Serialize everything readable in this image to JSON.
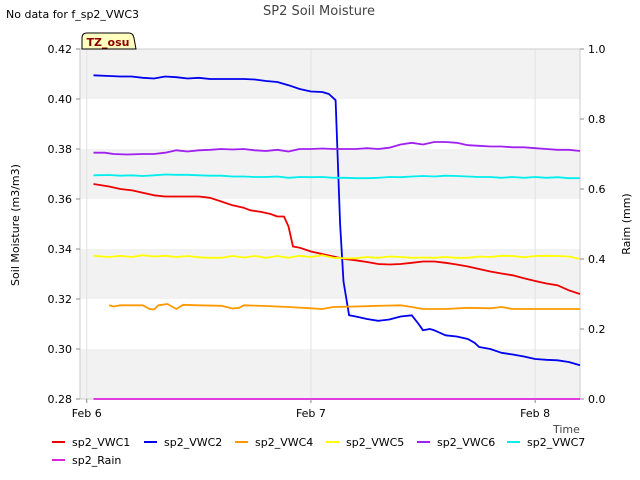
{
  "chart_data": {
    "type": "line",
    "title": "SP2 Soil Moisture",
    "no_data_note": "No data for f_sp2_VWC3",
    "badge": "TZ_osu",
    "xlabel": "Time",
    "ylabel": "Soil Moisture (m3/m3)",
    "y2label": "Raim (mm)",
    "ylim": [
      0.28,
      0.42
    ],
    "y2lim": [
      0.0,
      1.0
    ],
    "xlim_days": [
      -0.03,
      2.2
    ],
    "x_ticks": [
      {
        "pos": 0,
        "label": "Feb 6"
      },
      {
        "pos": 1,
        "label": "Feb 7"
      },
      {
        "pos": 2,
        "label": "Feb 8"
      }
    ],
    "y_ticks": [
      "0.28",
      "0.30",
      "0.32",
      "0.34",
      "0.36",
      "0.38",
      "0.40",
      "0.42"
    ],
    "y2_ticks": [
      "0.0",
      "0.2",
      "0.4",
      "0.6",
      "0.8",
      "1.0"
    ],
    "grid_bands": "alternating grey horizontal bands",
    "legend_position": "bottom",
    "series": [
      {
        "name": "sp2_VWC1",
        "color": "#ee0000",
        "axis": "left",
        "points": [
          [
            0.03,
            0.366
          ],
          [
            0.1,
            0.365
          ],
          [
            0.15,
            0.364
          ],
          [
            0.2,
            0.3635
          ],
          [
            0.25,
            0.3625
          ],
          [
            0.3,
            0.3615
          ],
          [
            0.35,
            0.361
          ],
          [
            0.4,
            0.361
          ],
          [
            0.45,
            0.361
          ],
          [
            0.5,
            0.361
          ],
          [
            0.55,
            0.3605
          ],
          [
            0.6,
            0.359
          ],
          [
            0.65,
            0.3575
          ],
          [
            0.7,
            0.3565
          ],
          [
            0.73,
            0.3555
          ],
          [
            0.78,
            0.3548
          ],
          [
            0.82,
            0.354
          ],
          [
            0.85,
            0.353
          ],
          [
            0.88,
            0.353
          ],
          [
            0.9,
            0.349
          ],
          [
            0.92,
            0.341
          ],
          [
            0.95,
            0.3405
          ],
          [
            1.0,
            0.339
          ],
          [
            1.05,
            0.338
          ],
          [
            1.1,
            0.337
          ],
          [
            1.15,
            0.336
          ],
          [
            1.2,
            0.3355
          ],
          [
            1.25,
            0.3348
          ],
          [
            1.3,
            0.334
          ],
          [
            1.35,
            0.3338
          ],
          [
            1.4,
            0.334
          ],
          [
            1.45,
            0.3345
          ],
          [
            1.5,
            0.335
          ],
          [
            1.55,
            0.335
          ],
          [
            1.6,
            0.3345
          ],
          [
            1.65,
            0.3338
          ],
          [
            1.7,
            0.333
          ],
          [
            1.75,
            0.332
          ],
          [
            1.8,
            0.331
          ],
          [
            1.85,
            0.3302
          ],
          [
            1.9,
            0.3295
          ],
          [
            1.95,
            0.3283
          ],
          [
            2.0,
            0.3272
          ],
          [
            2.05,
            0.3262
          ],
          [
            2.1,
            0.3255
          ],
          [
            2.15,
            0.3235
          ],
          [
            2.2,
            0.322
          ]
        ]
      },
      {
        "name": "sp2_VWC2",
        "color": "#0000ee",
        "axis": "left",
        "points": [
          [
            0.03,
            0.4095
          ],
          [
            0.1,
            0.4092
          ],
          [
            0.15,
            0.409
          ],
          [
            0.2,
            0.409
          ],
          [
            0.25,
            0.4085
          ],
          [
            0.3,
            0.4082
          ],
          [
            0.35,
            0.409
          ],
          [
            0.4,
            0.4087
          ],
          [
            0.45,
            0.4082
          ],
          [
            0.5,
            0.4085
          ],
          [
            0.55,
            0.408
          ],
          [
            0.6,
            0.408
          ],
          [
            0.65,
            0.408
          ],
          [
            0.7,
            0.408
          ],
          [
            0.75,
            0.4078
          ],
          [
            0.8,
            0.4072
          ],
          [
            0.85,
            0.4068
          ],
          [
            0.9,
            0.4055
          ],
          [
            0.95,
            0.404
          ],
          [
            1.0,
            0.403
          ],
          [
            1.05,
            0.4028
          ],
          [
            1.08,
            0.402
          ],
          [
            1.11,
            0.3995
          ],
          [
            1.13,
            0.35
          ],
          [
            1.145,
            0.327
          ],
          [
            1.17,
            0.3135
          ],
          [
            1.2,
            0.313
          ],
          [
            1.25,
            0.312
          ],
          [
            1.3,
            0.3113
          ],
          [
            1.35,
            0.3118
          ],
          [
            1.4,
            0.313
          ],
          [
            1.45,
            0.3135
          ],
          [
            1.48,
            0.31
          ],
          [
            1.5,
            0.3075
          ],
          [
            1.53,
            0.308
          ],
          [
            1.55,
            0.3075
          ],
          [
            1.6,
            0.3055
          ],
          [
            1.65,
            0.305
          ],
          [
            1.7,
            0.304
          ],
          [
            1.73,
            0.3025
          ],
          [
            1.75,
            0.3008
          ],
          [
            1.8,
            0.3
          ],
          [
            1.85,
            0.2985
          ],
          [
            1.9,
            0.2978
          ],
          [
            1.95,
            0.297
          ],
          [
            2.0,
            0.296
          ],
          [
            2.05,
            0.2957
          ],
          [
            2.1,
            0.2955
          ],
          [
            2.15,
            0.2948
          ],
          [
            2.2,
            0.2935
          ]
        ]
      },
      {
        "name": "sp2_VWC4",
        "color": "#ff9900",
        "axis": "left",
        "points": [
          [
            0.1,
            0.3175
          ],
          [
            0.12,
            0.317
          ],
          [
            0.15,
            0.3175
          ],
          [
            0.2,
            0.3175
          ],
          [
            0.25,
            0.3175
          ],
          [
            0.28,
            0.316
          ],
          [
            0.3,
            0.3158
          ],
          [
            0.32,
            0.3175
          ],
          [
            0.36,
            0.318
          ],
          [
            0.4,
            0.316
          ],
          [
            0.43,
            0.3177
          ],
          [
            0.5,
            0.3175
          ],
          [
            0.6,
            0.3173
          ],
          [
            0.65,
            0.3162
          ],
          [
            0.68,
            0.3165
          ],
          [
            0.7,
            0.3175
          ],
          [
            0.8,
            0.3172
          ],
          [
            0.9,
            0.3168
          ],
          [
            1.0,
            0.3163
          ],
          [
            1.05,
            0.316
          ],
          [
            1.1,
            0.3168
          ],
          [
            1.2,
            0.317
          ],
          [
            1.3,
            0.3173
          ],
          [
            1.4,
            0.3175
          ],
          [
            1.45,
            0.3168
          ],
          [
            1.5,
            0.316
          ],
          [
            1.6,
            0.316
          ],
          [
            1.7,
            0.3165
          ],
          [
            1.8,
            0.3163
          ],
          [
            1.85,
            0.3168
          ],
          [
            1.9,
            0.316
          ],
          [
            2.0,
            0.316
          ],
          [
            2.1,
            0.316
          ],
          [
            2.2,
            0.316
          ]
        ]
      },
      {
        "name": "sp2_VWC5",
        "color": "#ffff00",
        "axis": "left",
        "points": [
          [
            0.03,
            0.3373
          ],
          [
            0.1,
            0.3368
          ],
          [
            0.15,
            0.3373
          ],
          [
            0.2,
            0.3368
          ],
          [
            0.25,
            0.3375
          ],
          [
            0.3,
            0.337
          ],
          [
            0.35,
            0.3373
          ],
          [
            0.4,
            0.3368
          ],
          [
            0.45,
            0.3372
          ],
          [
            0.5,
            0.3367
          ],
          [
            0.55,
            0.3365
          ],
          [
            0.6,
            0.3365
          ],
          [
            0.65,
            0.3372
          ],
          [
            0.7,
            0.3366
          ],
          [
            0.75,
            0.3372
          ],
          [
            0.8,
            0.3365
          ],
          [
            0.85,
            0.3372
          ],
          [
            0.9,
            0.3365
          ],
          [
            0.95,
            0.3373
          ],
          [
            1.0,
            0.3368
          ],
          [
            1.05,
            0.3375
          ],
          [
            1.1,
            0.3365
          ],
          [
            1.15,
            0.3363
          ],
          [
            1.2,
            0.3363
          ],
          [
            1.25,
            0.3368
          ],
          [
            1.3,
            0.3365
          ],
          [
            1.35,
            0.337
          ],
          [
            1.4,
            0.3368
          ],
          [
            1.45,
            0.3365
          ],
          [
            1.5,
            0.3366
          ],
          [
            1.55,
            0.3365
          ],
          [
            1.6,
            0.3368
          ],
          [
            1.65,
            0.3365
          ],
          [
            1.7,
            0.3365
          ],
          [
            1.75,
            0.337
          ],
          [
            1.8,
            0.3368
          ],
          [
            1.85,
            0.3373
          ],
          [
            1.9,
            0.3372
          ],
          [
            1.95,
            0.3367
          ],
          [
            2.0,
            0.3372
          ],
          [
            2.05,
            0.3373
          ],
          [
            2.1,
            0.3372
          ],
          [
            2.15,
            0.337
          ],
          [
            2.2,
            0.336
          ]
        ]
      },
      {
        "name": "sp2_VWC6",
        "color": "#a020f0",
        "axis": "left",
        "points": [
          [
            0.03,
            0.3785
          ],
          [
            0.08,
            0.3785
          ],
          [
            0.12,
            0.378
          ],
          [
            0.18,
            0.3778
          ],
          [
            0.25,
            0.378
          ],
          [
            0.3,
            0.378
          ],
          [
            0.35,
            0.3785
          ],
          [
            0.4,
            0.3795
          ],
          [
            0.45,
            0.379
          ],
          [
            0.5,
            0.3795
          ],
          [
            0.55,
            0.3797
          ],
          [
            0.6,
            0.38
          ],
          [
            0.65,
            0.3798
          ],
          [
            0.7,
            0.38
          ],
          [
            0.75,
            0.3795
          ],
          [
            0.8,
            0.3792
          ],
          [
            0.85,
            0.3797
          ],
          [
            0.9,
            0.379
          ],
          [
            0.95,
            0.38
          ],
          [
            1.0,
            0.38
          ],
          [
            1.05,
            0.3802
          ],
          [
            1.1,
            0.38
          ],
          [
            1.15,
            0.38
          ],
          [
            1.2,
            0.38
          ],
          [
            1.25,
            0.3803
          ],
          [
            1.3,
            0.38
          ],
          [
            1.35,
            0.3805
          ],
          [
            1.4,
            0.3818
          ],
          [
            1.45,
            0.3825
          ],
          [
            1.5,
            0.3818
          ],
          [
            1.55,
            0.3828
          ],
          [
            1.6,
            0.3828
          ],
          [
            1.65,
            0.3825
          ],
          [
            1.7,
            0.3815
          ],
          [
            1.75,
            0.3813
          ],
          [
            1.8,
            0.381
          ],
          [
            1.85,
            0.381
          ],
          [
            1.9,
            0.3807
          ],
          [
            1.95,
            0.3807
          ],
          [
            2.0,
            0.3803
          ],
          [
            2.05,
            0.38
          ],
          [
            2.1,
            0.3797
          ],
          [
            2.15,
            0.3797
          ],
          [
            2.2,
            0.3792
          ]
        ]
      },
      {
        "name": "sp2_VWC7",
        "color": "#00eeee",
        "axis": "left",
        "points": [
          [
            0.03,
            0.3695
          ],
          [
            0.1,
            0.3696
          ],
          [
            0.15,
            0.3693
          ],
          [
            0.2,
            0.3695
          ],
          [
            0.25,
            0.3692
          ],
          [
            0.3,
            0.3695
          ],
          [
            0.35,
            0.3698
          ],
          [
            0.4,
            0.3697
          ],
          [
            0.45,
            0.3697
          ],
          [
            0.5,
            0.3695
          ],
          [
            0.55,
            0.3693
          ],
          [
            0.6,
            0.3693
          ],
          [
            0.65,
            0.369
          ],
          [
            0.7,
            0.369
          ],
          [
            0.75,
            0.3688
          ],
          [
            0.8,
            0.3688
          ],
          [
            0.85,
            0.369
          ],
          [
            0.9,
            0.3685
          ],
          [
            0.95,
            0.3688
          ],
          [
            1.0,
            0.3687
          ],
          [
            1.05,
            0.3688
          ],
          [
            1.1,
            0.3685
          ],
          [
            1.15,
            0.3685
          ],
          [
            1.2,
            0.3683
          ],
          [
            1.25,
            0.3683
          ],
          [
            1.3,
            0.3685
          ],
          [
            1.35,
            0.3688
          ],
          [
            1.4,
            0.3687
          ],
          [
            1.45,
            0.369
          ],
          [
            1.5,
            0.3692
          ],
          [
            1.55,
            0.369
          ],
          [
            1.6,
            0.3693
          ],
          [
            1.65,
            0.3692
          ],
          [
            1.7,
            0.369
          ],
          [
            1.75,
            0.3688
          ],
          [
            1.8,
            0.3688
          ],
          [
            1.85,
            0.3685
          ],
          [
            1.9,
            0.3688
          ],
          [
            1.95,
            0.3685
          ],
          [
            2.0,
            0.3688
          ],
          [
            2.05,
            0.3685
          ],
          [
            2.1,
            0.3687
          ],
          [
            2.15,
            0.3683
          ],
          [
            2.2,
            0.3683
          ]
        ]
      },
      {
        "name": "sp2_Rain",
        "color": "#dd22dd",
        "axis": "right",
        "points": [
          [
            0.03,
            0.0
          ],
          [
            2.2,
            0.0
          ]
        ]
      }
    ]
  }
}
